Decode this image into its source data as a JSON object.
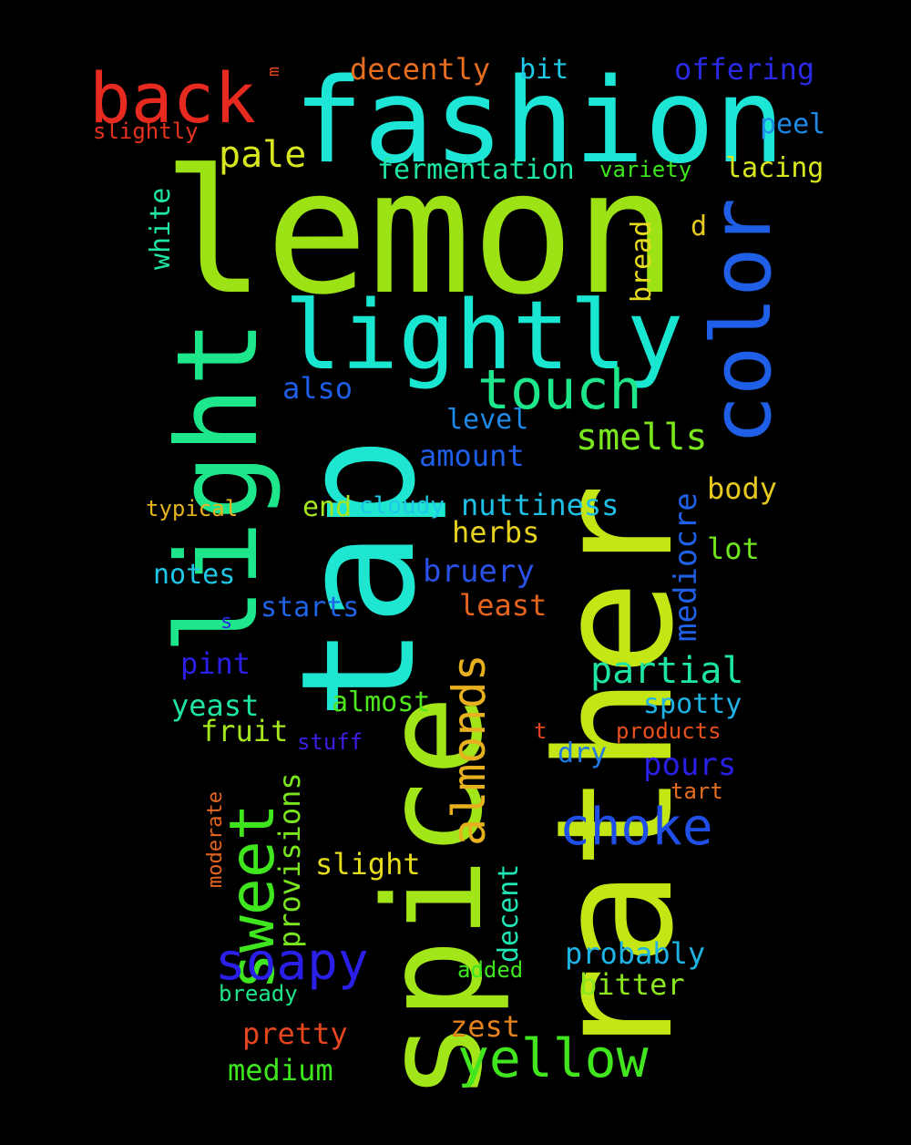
{
  "words": [
    {
      "key": "lemon",
      "text": "lemon",
      "color": "#9de214"
    },
    {
      "key": "fashion",
      "text": "fashion",
      "color": "#1ee6d6"
    },
    {
      "key": "rather",
      "text": "rather",
      "color": "#c4e614"
    },
    {
      "key": "tap",
      "text": "tap",
      "color": "#1ee6d0"
    },
    {
      "key": "spice",
      "text": "spice",
      "color": "#a2e61a"
    },
    {
      "key": "light",
      "text": "light",
      "color": "#1ee68a"
    },
    {
      "key": "lightly",
      "text": "lightly",
      "color": "#19e6d0"
    },
    {
      "key": "color",
      "text": "color",
      "color": "#1f5ee6"
    },
    {
      "key": "back",
      "text": "back",
      "color": "#e62a1f"
    },
    {
      "key": "sweet",
      "text": "sweet",
      "color": "#3fe61e"
    },
    {
      "key": "touch",
      "text": "touch",
      "color": "#1ee68a"
    },
    {
      "key": "almonds",
      "text": "almonds",
      "color": "#e6b01e"
    },
    {
      "key": "choke",
      "text": "choke",
      "color": "#1f4fe6"
    },
    {
      "key": "soapy",
      "text": "soapy",
      "color": "#2a1fe6"
    },
    {
      "key": "yellow",
      "text": "yellow",
      "color": "#42e61e"
    },
    {
      "key": "smells",
      "text": "smells",
      "color": "#7ae61e"
    },
    {
      "key": "partial",
      "text": "partial",
      "color": "#1ee6a0"
    },
    {
      "key": "pale",
      "text": "pale",
      "color": "#d7e61e"
    },
    {
      "key": "mediocre",
      "text": "mediocre",
      "color": "#1f60e6"
    },
    {
      "key": "provisions",
      "text": "provisions",
      "color": "#7ae61e"
    },
    {
      "key": "decently",
      "text": "decently",
      "color": "#e66e1e"
    },
    {
      "key": "offering",
      "text": "offering",
      "color": "#2a2ae6"
    },
    {
      "key": "fermentation",
      "text": "fermentation",
      "color": "#1ee6a5"
    },
    {
      "key": "bit",
      "text": "bit",
      "color": "#1ec9e6"
    },
    {
      "key": "peel",
      "text": "peel",
      "color": "#1f8ae6"
    },
    {
      "key": "lacing",
      "text": "lacing",
      "color": "#d7e61e"
    },
    {
      "key": "variety",
      "text": "variety",
      "color": "#3ee61e"
    },
    {
      "key": "slightly",
      "text": "slightly",
      "color": "#e6321e"
    },
    {
      "key": "white",
      "text": "white",
      "color": "#1ee6a0"
    },
    {
      "key": "bread",
      "text": "bread",
      "color": "#e6dc1e"
    },
    {
      "key": "d",
      "text": "d",
      "color": "#e6c81e"
    },
    {
      "key": "also",
      "text": "also",
      "color": "#1f5ee6"
    },
    {
      "key": "level",
      "text": "level",
      "color": "#1f8ae6"
    },
    {
      "key": "amount",
      "text": "amount",
      "color": "#1f5ee6"
    },
    {
      "key": "body",
      "text": "body",
      "color": "#e6c81e"
    },
    {
      "key": "typical",
      "text": "typical",
      "color": "#e6b41e"
    },
    {
      "key": "end",
      "text": "end",
      "color": "#a6e61e"
    },
    {
      "key": "cloudy",
      "text": "cloudy",
      "color": "#1ec8e6"
    },
    {
      "key": "nuttiness",
      "text": "nuttiness",
      "color": "#1ec0e6"
    },
    {
      "key": "herbs",
      "text": "herbs",
      "color": "#e6d21e"
    },
    {
      "key": "lot",
      "text": "lot",
      "color": "#6ee61e"
    },
    {
      "key": "notes",
      "text": "notes",
      "color": "#1ec8e6"
    },
    {
      "key": "bruery",
      "text": "bruery",
      "color": "#2a50e6"
    },
    {
      "key": "least",
      "text": "least",
      "color": "#e6641e"
    },
    {
      "key": "starts",
      "text": "starts",
      "color": "#1f64e6"
    },
    {
      "key": "s",
      "text": "s",
      "color": "#2a2ae6"
    },
    {
      "key": "pint",
      "text": "pint",
      "color": "#2a1fe6"
    },
    {
      "key": "yeast",
      "text": "yeast",
      "color": "#1ee6a0"
    },
    {
      "key": "almost",
      "text": "almost",
      "color": "#50e61e"
    },
    {
      "key": "spotty",
      "text": "spotty",
      "color": "#1eb4e6"
    },
    {
      "key": "fruit",
      "text": "fruit",
      "color": "#a6e61e"
    },
    {
      "key": "stuff",
      "text": "stuff",
      "color": "#3a1fe6"
    },
    {
      "key": "t",
      "text": "t",
      "color": "#e6461e"
    },
    {
      "key": "products",
      "text": "products",
      "color": "#e6501e"
    },
    {
      "key": "dry",
      "text": "dry",
      "color": "#1f78e6"
    },
    {
      "key": "pours",
      "text": "pours",
      "color": "#2a1fe6"
    },
    {
      "key": "tart",
      "text": "tart",
      "color": "#e66e1e"
    },
    {
      "key": "moderate",
      "text": "moderate",
      "color": "#e6641e"
    },
    {
      "key": "slight",
      "text": "slight",
      "color": "#e6dc1e"
    },
    {
      "key": "decent",
      "text": "decent",
      "color": "#1ee6b4"
    },
    {
      "key": "probably",
      "text": "probably",
      "color": "#1eb4e6"
    },
    {
      "key": "added",
      "text": "added",
      "color": "#3ee61e"
    },
    {
      "key": "bitter",
      "text": "bitter",
      "color": "#8ce61e"
    },
    {
      "key": "bready",
      "text": "bready",
      "color": "#1ee68a"
    },
    {
      "key": "zest",
      "text": "zest",
      "color": "#e6821e"
    },
    {
      "key": "pretty",
      "text": "pretty",
      "color": "#e6461e"
    },
    {
      "key": "medium",
      "text": "medium",
      "color": "#3ee61e"
    },
    {
      "key": "m",
      "text": "m",
      "color": "#e6461e"
    }
  ]
}
